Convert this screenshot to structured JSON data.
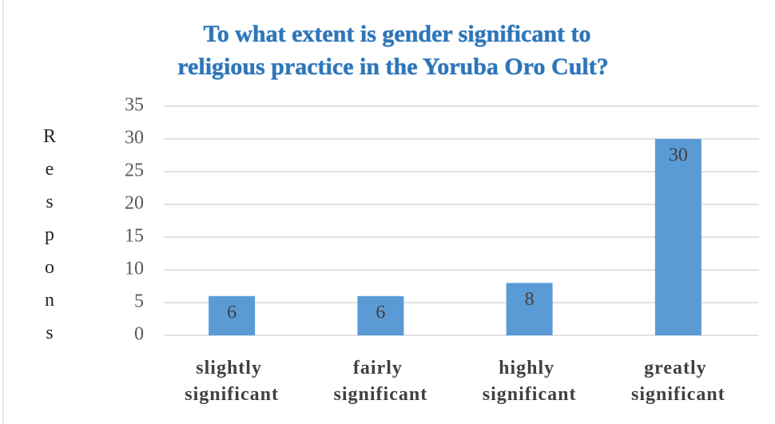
{
  "chart_data": {
    "type": "bar",
    "title": [
      "To what extent is gender significant to",
      "religious practice in the Yoruba Oro Cult?"
    ],
    "y_label": "Respons",
    "categories": [
      "slightly significant",
      "fairly significant",
      "highly significant",
      "greatly significant"
    ],
    "values": [
      6,
      6,
      8,
      30
    ],
    "color": "#5b9bd5",
    "ylim": [
      0,
      35
    ],
    "yticks": [
      0,
      5,
      10,
      15,
      20,
      25,
      30,
      35
    ],
    "grid": true
  }
}
